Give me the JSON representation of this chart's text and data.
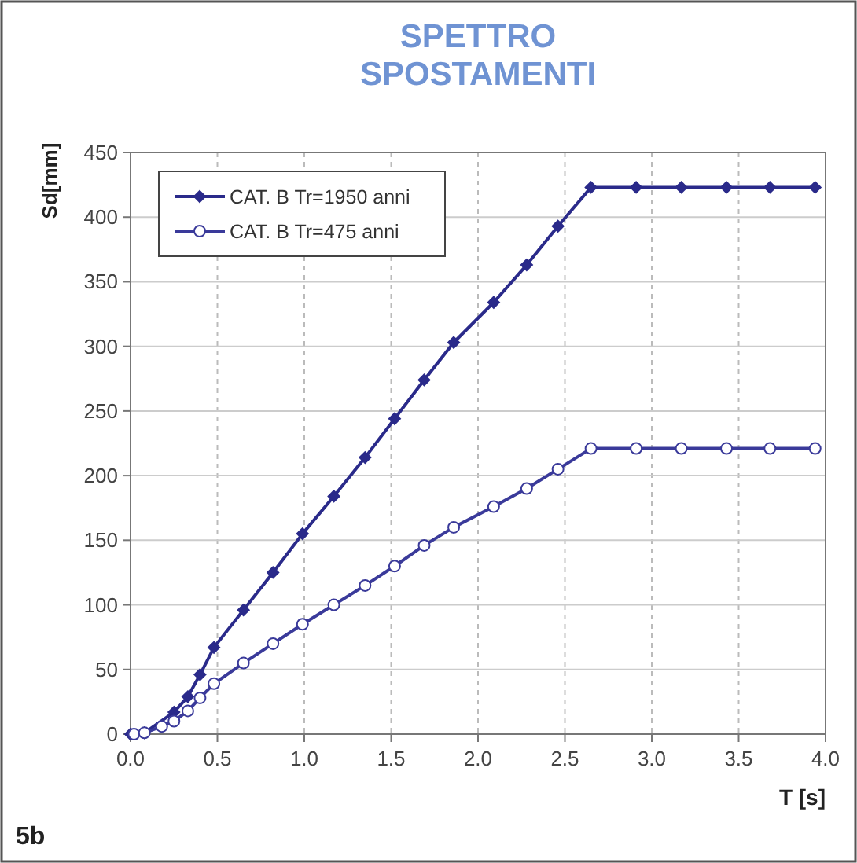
{
  "chart_data": {
    "type": "line",
    "title": "SPETTRO\nSPOSTAMENTI",
    "xlabel": "T [s]",
    "ylabel": "Sd[mm]",
    "annotations": [
      "5b"
    ],
    "xlim": [
      0,
      4
    ],
    "xticks": [
      {
        "value": 0,
        "label": "0.0"
      },
      {
        "value": 0.5,
        "label": "0.5"
      },
      {
        "value": 1,
        "label": "1.0"
      },
      {
        "value": 1.5,
        "label": "1.5"
      },
      {
        "value": 2,
        "label": "2.0"
      },
      {
        "value": 2.5,
        "label": "2.5"
      },
      {
        "value": 3,
        "label": "3.0"
      },
      {
        "value": 3.5,
        "label": "3.5"
      },
      {
        "value": 4,
        "label": "4.0"
      }
    ],
    "ylim": [
      0,
      450
    ],
    "yticks": [
      0,
      50,
      100,
      150,
      200,
      250,
      300,
      350,
      400,
      450
    ],
    "grid": true,
    "legend": "top left",
    "line_style": "solid",
    "series": [
      {
        "name": "CAT. B Tr=1950 anni",
        "color": "#2a2a8a",
        "marker": "diamond",
        "x": [
          0,
          0.08,
          0.13,
          0.18,
          0.25,
          0.33,
          0.4,
          0.48,
          0.65,
          0.82,
          0.99,
          1.17,
          1.35,
          1.52,
          1.69,
          1.86,
          2.09,
          2.28,
          2.46,
          2.65,
          2.91,
          3.17,
          3.43,
          3.68,
          3.94
        ],
        "values": [
          0,
          1,
          null,
          null,
          17,
          29,
          46,
          67,
          96,
          125,
          155,
          184,
          214,
          244,
          274,
          303,
          334,
          363,
          393,
          423,
          423,
          423,
          423,
          423,
          423
        ]
      },
      {
        "name": "CAT. B Tr=475 anni",
        "color": "#3a3a9a",
        "marker": "circle",
        "x": [
          0.02,
          0.08,
          0.13,
          0.18,
          0.25,
          0.33,
          0.4,
          0.48,
          0.65,
          0.82,
          0.99,
          1.17,
          1.35,
          1.52,
          1.69,
          1.86,
          2.09,
          2.28,
          2.46,
          2.65,
          2.91,
          3.17,
          3.43,
          3.68,
          3.94
        ],
        "values": [
          0,
          1,
          null,
          6,
          10,
          18,
          28,
          39,
          55,
          70,
          85,
          100,
          115,
          130,
          146,
          160,
          176,
          190,
          205,
          221,
          221,
          221,
          221,
          221,
          221
        ]
      }
    ]
  }
}
